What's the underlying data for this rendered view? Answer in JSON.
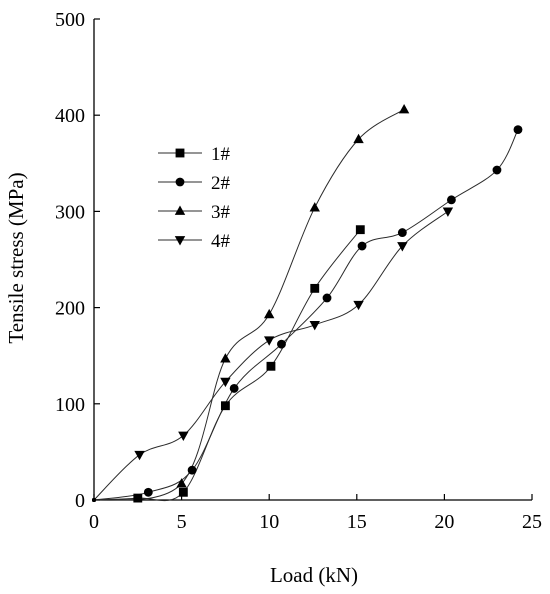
{
  "chart_data": {
    "type": "line",
    "xlabel": "Load (kN)",
    "ylabel": "Tensile stress (MPa)",
    "xlim": [
      0,
      25
    ],
    "ylim": [
      0,
      500
    ],
    "xticks": [
      "0",
      "5",
      "10",
      "15",
      "20",
      "25"
    ],
    "yticks": [
      "0",
      "100",
      "200",
      "300",
      "400",
      "500"
    ],
    "grid": false,
    "legend_position": "upper-left",
    "series": [
      {
        "name": "1#",
        "marker": "square",
        "points": [
          [
            0,
            0
          ],
          [
            2.5,
            2
          ],
          [
            5.1,
            8
          ],
          [
            7.5,
            98
          ],
          [
            10.1,
            139
          ],
          [
            12.6,
            220
          ],
          [
            15.2,
            281
          ]
        ]
      },
      {
        "name": "2#",
        "marker": "circle",
        "points": [
          [
            0,
            0
          ],
          [
            3.1,
            8
          ],
          [
            5.6,
            31
          ],
          [
            8.0,
            116
          ],
          [
            10.7,
            162
          ],
          [
            13.3,
            210
          ],
          [
            15.3,
            264
          ],
          [
            17.6,
            278
          ],
          [
            20.4,
            312
          ],
          [
            23.0,
            343
          ],
          [
            24.2,
            385
          ]
        ]
      },
      {
        "name": "3#",
        "marker": "triangle-up",
        "points": [
          [
            0,
            0
          ],
          [
            5.0,
            17
          ],
          [
            7.5,
            147
          ],
          [
            10.0,
            193
          ],
          [
            12.6,
            304
          ],
          [
            15.1,
            375
          ],
          [
            17.7,
            406
          ]
        ]
      },
      {
        "name": "4#",
        "marker": "triangle-down",
        "points": [
          [
            0,
            0
          ],
          [
            2.6,
            47
          ],
          [
            5.1,
            67
          ],
          [
            7.5,
            123
          ],
          [
            10.0,
            166
          ],
          [
            12.6,
            182
          ],
          [
            15.1,
            203
          ],
          [
            17.6,
            264
          ],
          [
            20.2,
            300
          ]
        ]
      }
    ]
  }
}
